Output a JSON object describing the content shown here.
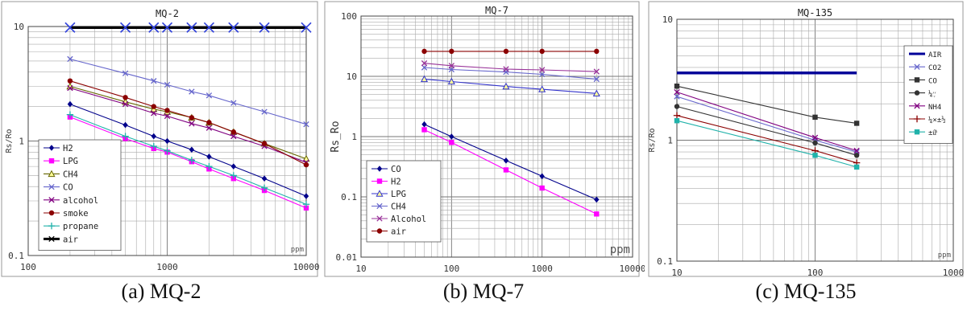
{
  "captions": [
    "(a) MQ-2",
    "(b) MQ-7",
    "(c) MQ-135"
  ],
  "chart_data": [
    {
      "type": "line",
      "title": "MQ-2",
      "xlabel": "ppm",
      "ylabel": "Rs/Ro",
      "xscale": "log",
      "yscale": "log",
      "xlim": [
        100,
        10000
      ],
      "ylim": [
        0.1,
        10
      ],
      "xticks": [
        "100",
        "1000",
        "10000"
      ],
      "yticks": [
        "10",
        "1",
        "0.1"
      ],
      "grid": true,
      "legend": "bottom-left",
      "series": [
        {
          "name": "H2",
          "color": "#00008b",
          "marker": "diamond",
          "x": [
            200,
            500,
            800,
            1000,
            1500,
            2000,
            3000,
            5000,
            10000
          ],
          "y": [
            2.1,
            1.38,
            1.1,
            1.0,
            0.84,
            0.73,
            0.6,
            0.47,
            0.33
          ]
        },
        {
          "name": "LPG",
          "color": "#ff00ff",
          "marker": "square",
          "x": [
            200,
            500,
            800,
            1000,
            1500,
            2000,
            3000,
            5000,
            10000
          ],
          "y": [
            1.62,
            1.05,
            0.86,
            0.8,
            0.66,
            0.57,
            0.47,
            0.37,
            0.26
          ]
        },
        {
          "name": "CH4",
          "color": "#666600",
          "marker": "triangle",
          "x": [
            200,
            500,
            800,
            1000,
            1500,
            2000,
            3000,
            5000,
            10000
          ],
          "y": [
            3.0,
            2.2,
            1.9,
            1.8,
            1.6,
            1.45,
            1.2,
            0.95,
            0.7
          ]
        },
        {
          "name": "CO",
          "color": "#6666cc",
          "marker": "x",
          "x": [
            200,
            500,
            800,
            1000,
            1500,
            2000,
            3000,
            5000,
            10000
          ],
          "y": [
            5.2,
            3.9,
            3.35,
            3.1,
            2.7,
            2.5,
            2.15,
            1.8,
            1.4
          ]
        },
        {
          "name": "alcohol",
          "color": "#800080",
          "marker": "x",
          "x": [
            200,
            500,
            800,
            1000,
            1500,
            2000,
            3000,
            5000,
            10000
          ],
          "y": [
            2.9,
            2.1,
            1.75,
            1.65,
            1.42,
            1.3,
            1.1,
            0.9,
            0.65
          ]
        },
        {
          "name": "smoke",
          "color": "#8b0000",
          "marker": "circle",
          "x": [
            200,
            500,
            800,
            1000,
            1500,
            2000,
            3000,
            5000,
            10000
          ],
          "y": [
            3.35,
            2.4,
            2.0,
            1.85,
            1.6,
            1.45,
            1.2,
            0.95,
            0.62
          ]
        },
        {
          "name": "propane",
          "color": "#20b2aa",
          "marker": "plus",
          "x": [
            200,
            500,
            800,
            1000,
            1500,
            2000,
            3000,
            5000,
            10000
          ],
          "y": [
            1.7,
            1.1,
            0.9,
            0.82,
            0.68,
            0.6,
            0.5,
            0.39,
            0.28
          ]
        },
        {
          "name": "air",
          "color": "#000000",
          "marker": "bigx",
          "x": [
            200,
            500,
            800,
            1000,
            1500,
            2000,
            3000,
            5000,
            10000
          ],
          "y": [
            9.8,
            9.8,
            9.8,
            9.8,
            9.8,
            9.8,
            9.8,
            9.8,
            9.8
          ]
        }
      ]
    },
    {
      "type": "line",
      "title": "MQ-7",
      "xlabel": "ppm",
      "ylabel": "Rs_Ro",
      "xscale": "log",
      "yscale": "log",
      "xlim": [
        10,
        10000
      ],
      "ylim": [
        0.01,
        100
      ],
      "xticks": [
        "10",
        "100",
        "1000",
        "10000"
      ],
      "yticks": [
        "100",
        "10",
        "1",
        "0.1",
        "0.01"
      ],
      "grid": true,
      "legend": "bottom-left",
      "series": [
        {
          "name": "CO",
          "color": "#00008b",
          "marker": "diamond",
          "x": [
            50,
            100,
            400,
            1000,
            4000
          ],
          "y": [
            1.6,
            1.0,
            0.4,
            0.22,
            0.09
          ]
        },
        {
          "name": "H2",
          "color": "#ff00ff",
          "marker": "square",
          "x": [
            50,
            100,
            400,
            1000,
            4000
          ],
          "y": [
            1.3,
            0.8,
            0.28,
            0.14,
            0.052
          ]
        },
        {
          "name": "LPG",
          "color": "#3333cc",
          "marker": "triangle",
          "x": [
            50,
            100,
            400,
            1000,
            4000
          ],
          "y": [
            9.0,
            8.2,
            6.8,
            6.1,
            5.2
          ]
        },
        {
          "name": "CH4",
          "color": "#6666cc",
          "marker": "x",
          "x": [
            50,
            100,
            400,
            1000,
            4000
          ],
          "y": [
            14.0,
            13.0,
            11.8,
            10.8,
            9.0
          ]
        },
        {
          "name": "Alcohol",
          "color": "#993399",
          "marker": "x",
          "x": [
            50,
            100,
            400,
            1000,
            4000
          ],
          "y": [
            16.5,
            15.0,
            13.2,
            12.8,
            12.0
          ]
        },
        {
          "name": "air",
          "color": "#8b0000",
          "marker": "circle",
          "x": [
            50,
            100,
            400,
            1000,
            4000
          ],
          "y": [
            26,
            26,
            26,
            26,
            26
          ]
        }
      ]
    },
    {
      "type": "line",
      "title": "MQ-135",
      "xlabel": "ppm",
      "ylabel": "Rs/Ro",
      "xscale": "log",
      "yscale": "log",
      "xlim": [
        10,
        1000
      ],
      "ylim": [
        0.1,
        10
      ],
      "xticks": [
        "10",
        "100",
        "1000"
      ],
      "yticks": [
        "10",
        "1",
        "0.1"
      ],
      "grid": true,
      "legend": "top-right",
      "series": [
        {
          "name": "AIR",
          "color": "#000099",
          "marker": "none",
          "x": [
            10,
            200
          ],
          "y": [
            3.6,
            3.6
          ]
        },
        {
          "name": "CO2",
          "color": "#6666cc",
          "marker": "x",
          "x": [
            10,
            100,
            200
          ],
          "y": [
            2.3,
            1.0,
            0.8
          ]
        },
        {
          "name": "CO",
          "color": "#333333",
          "marker": "square",
          "x": [
            10,
            100,
            200
          ],
          "y": [
            2.8,
            1.55,
            1.38
          ]
        },
        {
          "name": "¼׳ֶ׳",
          "color": "#333333",
          "marker": "circle",
          "x": [
            10,
            100,
            200
          ],
          "y": [
            1.9,
            0.95,
            0.75
          ]
        },
        {
          "name": "NH4",
          "color": "#800080",
          "marker": "x",
          "x": [
            10,
            100,
            200
          ],
          "y": [
            2.5,
            1.05,
            0.82
          ]
        },
        {
          "name": "¼×±½",
          "color": "#8b0000",
          "marker": "plus",
          "x": [
            10,
            100,
            200
          ],
          "y": [
            1.6,
            0.82,
            0.65
          ]
        },
        {
          "name": "±ûͪ",
          "color": "#20b2aa",
          "marker": "square",
          "x": [
            10,
            100,
            200
          ],
          "y": [
            1.45,
            0.75,
            0.6
          ]
        }
      ]
    }
  ]
}
